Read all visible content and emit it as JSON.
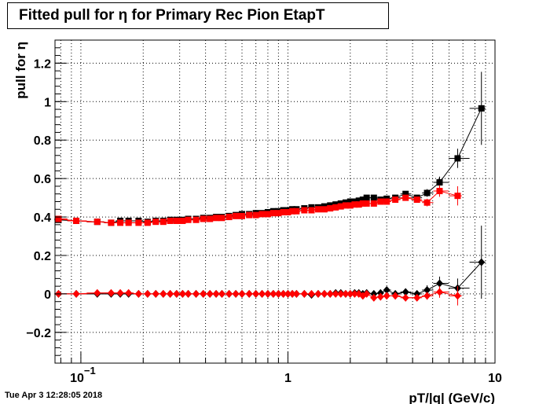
{
  "title": "Fitted pull for  η for Primary Rec Pion EtapT",
  "footer": "Tue Apr  3 12:28:05 2018",
  "chart_data": {
    "type": "scatter",
    "title": "Fitted pull for  η for Primary Rec Pion EtapT",
    "xlabel": "pT/|q| (GeV/c)",
    "ylabel": "pull for  η",
    "xscale": "log",
    "xlim": [
      0.075,
      10
    ],
    "ylim": [
      -0.36,
      1.32
    ],
    "grid": true,
    "x_ticks": [
      {
        "value": 0.1,
        "label": "10",
        "sup": "−1"
      },
      {
        "value": 1,
        "label": "1"
      },
      {
        "value": 10,
        "label": "10"
      }
    ],
    "y_ticks": [
      {
        "value": -0.2,
        "label": "−0.2"
      },
      {
        "value": 0,
        "label": "0"
      },
      {
        "value": 0.2,
        "label": "0.2"
      },
      {
        "value": 0.4,
        "label": "0.4"
      },
      {
        "value": 0.6,
        "label": "0.6"
      },
      {
        "value": 0.8,
        "label": "0.8"
      },
      {
        "value": 1,
        "label": "1"
      },
      {
        "value": 1.2,
        "label": "1.2"
      }
    ],
    "series": [
      {
        "color": "#000000",
        "marker": "square",
        "x": [
          0.078,
          0.095,
          0.12,
          0.14,
          0.155,
          0.17,
          0.19,
          0.21,
          0.23,
          0.25,
          0.27,
          0.29,
          0.31,
          0.33,
          0.36,
          0.39,
          0.42,
          0.45,
          0.48,
          0.52,
          0.56,
          0.6,
          0.65,
          0.7,
          0.75,
          0.8,
          0.85,
          0.9,
          0.95,
          1.0,
          1.05,
          1.1,
          1.2,
          1.3,
          1.4,
          1.5,
          1.6,
          1.7,
          1.8,
          1.9,
          2.0,
          2.1,
          2.2,
          2.3,
          2.4,
          2.6,
          2.8,
          3.0,
          3.3,
          3.7,
          4.2,
          4.7,
          5.4,
          6.6,
          8.6
        ],
        "y": [
          0.385,
          0.38,
          0.375,
          0.37,
          0.38,
          0.38,
          0.38,
          0.375,
          0.38,
          0.38,
          0.385,
          0.385,
          0.385,
          0.39,
          0.39,
          0.395,
          0.395,
          0.4,
          0.4,
          0.405,
          0.41,
          0.415,
          0.415,
          0.42,
          0.42,
          0.425,
          0.43,
          0.43,
          0.435,
          0.435,
          0.44,
          0.44,
          0.445,
          0.45,
          0.45,
          0.455,
          0.46,
          0.465,
          0.47,
          0.475,
          0.48,
          0.48,
          0.485,
          0.49,
          0.5,
          0.5,
          0.49,
          0.495,
          0.5,
          0.52,
          0.5,
          0.525,
          0.58,
          0.705,
          0.965
        ],
        "yerr": [
          0.005,
          0.005,
          0.005,
          0.005,
          0.005,
          0.005,
          0.005,
          0.005,
          0.005,
          0.005,
          0.005,
          0.005,
          0.005,
          0.005,
          0.005,
          0.005,
          0.005,
          0.005,
          0.005,
          0.005,
          0.005,
          0.005,
          0.005,
          0.005,
          0.005,
          0.005,
          0.005,
          0.005,
          0.005,
          0.005,
          0.005,
          0.005,
          0.005,
          0.005,
          0.005,
          0.005,
          0.005,
          0.005,
          0.005,
          0.006,
          0.006,
          0.006,
          0.006,
          0.007,
          0.008,
          0.008,
          0.008,
          0.01,
          0.01,
          0.012,
          0.015,
          0.02,
          0.03,
          0.05,
          0.19
        ]
      },
      {
        "color": "#ff0000",
        "marker": "square",
        "x": [
          0.078,
          0.095,
          0.12,
          0.14,
          0.155,
          0.17,
          0.19,
          0.21,
          0.23,
          0.25,
          0.27,
          0.29,
          0.31,
          0.33,
          0.36,
          0.39,
          0.42,
          0.45,
          0.48,
          0.52,
          0.56,
          0.6,
          0.65,
          0.7,
          0.75,
          0.8,
          0.85,
          0.9,
          0.95,
          1.0,
          1.05,
          1.1,
          1.2,
          1.3,
          1.4,
          1.5,
          1.6,
          1.7,
          1.8,
          1.9,
          2.0,
          2.1,
          2.2,
          2.3,
          2.4,
          2.6,
          2.8,
          3.0,
          3.3,
          3.7,
          4.2,
          4.7,
          5.4,
          6.6
        ],
        "y": [
          0.39,
          0.38,
          0.375,
          0.37,
          0.37,
          0.37,
          0.37,
          0.37,
          0.375,
          0.375,
          0.38,
          0.38,
          0.38,
          0.385,
          0.385,
          0.39,
          0.39,
          0.395,
          0.395,
          0.4,
          0.405,
          0.405,
          0.41,
          0.41,
          0.415,
          0.415,
          0.42,
          0.42,
          0.425,
          0.425,
          0.43,
          0.43,
          0.435,
          0.435,
          0.44,
          0.44,
          0.445,
          0.45,
          0.455,
          0.46,
          0.46,
          0.465,
          0.465,
          0.47,
          0.47,
          0.47,
          0.48,
          0.48,
          0.49,
          0.5,
          0.49,
          0.475,
          0.535,
          0.51
        ],
        "yerr": [
          0.005,
          0.005,
          0.005,
          0.005,
          0.005,
          0.005,
          0.005,
          0.005,
          0.005,
          0.005,
          0.005,
          0.005,
          0.005,
          0.005,
          0.005,
          0.005,
          0.005,
          0.005,
          0.005,
          0.005,
          0.005,
          0.005,
          0.005,
          0.005,
          0.005,
          0.005,
          0.005,
          0.005,
          0.005,
          0.005,
          0.005,
          0.005,
          0.005,
          0.005,
          0.005,
          0.005,
          0.005,
          0.005,
          0.005,
          0.006,
          0.006,
          0.006,
          0.006,
          0.007,
          0.008,
          0.008,
          0.008,
          0.01,
          0.01,
          0.012,
          0.015,
          0.02,
          0.03,
          0.05
        ]
      },
      {
        "color": "#000000",
        "marker": "diamond",
        "x": [
          0.078,
          0.095,
          0.12,
          0.14,
          0.155,
          0.17,
          0.19,
          0.21,
          0.23,
          0.25,
          0.27,
          0.29,
          0.31,
          0.33,
          0.36,
          0.39,
          0.42,
          0.45,
          0.48,
          0.52,
          0.56,
          0.6,
          0.65,
          0.7,
          0.75,
          0.8,
          0.85,
          0.9,
          0.95,
          1.0,
          1.05,
          1.1,
          1.2,
          1.3,
          1.4,
          1.5,
          1.6,
          1.7,
          1.8,
          1.9,
          2.0,
          2.1,
          2.2,
          2.3,
          2.4,
          2.6,
          2.8,
          3.0,
          3.3,
          3.7,
          4.2,
          4.7,
          5.4,
          6.6,
          8.6
        ],
        "y": [
          0.0,
          0.0,
          0.0,
          0.0,
          0.0,
          0.0,
          0.0,
          0.0,
          0.0,
          0.0,
          0.0,
          0.0,
          0.0,
          0.0,
          0.0,
          0.0,
          0.0,
          0.0,
          0.0,
          0.0,
          0.0,
          0.0,
          0.0,
          0.0,
          0.0,
          0.0,
          0.0,
          0.0,
          0.0,
          0.0,
          0.0,
          0.0,
          0.0,
          -0.005,
          0.0,
          0.0,
          0.0,
          0.005,
          0.005,
          0.0,
          0.0,
          0.005,
          0.005,
          0.0,
          0.005,
          0.0,
          0.005,
          0.02,
          0.0,
          0.01,
          0.0,
          0.02,
          0.055,
          0.03,
          0.165
        ],
        "yerr": [
          0.005,
          0.005,
          0.005,
          0.005,
          0.005,
          0.005,
          0.005,
          0.005,
          0.005,
          0.005,
          0.005,
          0.005,
          0.005,
          0.005,
          0.005,
          0.005,
          0.005,
          0.005,
          0.005,
          0.005,
          0.005,
          0.005,
          0.005,
          0.005,
          0.005,
          0.005,
          0.005,
          0.005,
          0.005,
          0.005,
          0.005,
          0.005,
          0.005,
          0.005,
          0.005,
          0.005,
          0.005,
          0.005,
          0.005,
          0.006,
          0.006,
          0.006,
          0.006,
          0.007,
          0.008,
          0.008,
          0.008,
          0.01,
          0.01,
          0.012,
          0.015,
          0.025,
          0.035,
          0.05,
          0.19
        ]
      },
      {
        "color": "#ff0000",
        "marker": "diamond",
        "x": [
          0.078,
          0.095,
          0.12,
          0.14,
          0.155,
          0.17,
          0.19,
          0.21,
          0.23,
          0.25,
          0.27,
          0.29,
          0.31,
          0.33,
          0.36,
          0.39,
          0.42,
          0.45,
          0.48,
          0.52,
          0.56,
          0.6,
          0.65,
          0.7,
          0.75,
          0.8,
          0.85,
          0.9,
          0.95,
          1.0,
          1.05,
          1.1,
          1.2,
          1.3,
          1.4,
          1.5,
          1.6,
          1.7,
          1.8,
          1.9,
          2.0,
          2.1,
          2.2,
          2.3,
          2.4,
          2.6,
          2.8,
          3.0,
          3.3,
          3.7,
          4.2,
          4.7,
          5.4,
          6.6
        ],
        "y": [
          0.0,
          0.0,
          0.005,
          0.005,
          0.005,
          0.005,
          0.0,
          0.0,
          0.0,
          0.0,
          0.0,
          0.0,
          0.0,
          0.0,
          0.0,
          0.0,
          0.0,
          0.0,
          0.0,
          0.0,
          0.0,
          0.0,
          0.0,
          0.0,
          0.0,
          0.0,
          0.0,
          0.0,
          0.0,
          0.0,
          0.0,
          0.0,
          0.0,
          0.0,
          0.0,
          0.0,
          0.0,
          0.0,
          0.0,
          0.0,
          0.0,
          0.0,
          0.0,
          -0.01,
          0.0,
          -0.02,
          -0.015,
          -0.01,
          -0.01,
          -0.02,
          -0.02,
          -0.01,
          0.01,
          -0.01
        ],
        "yerr": [
          0.005,
          0.005,
          0.005,
          0.005,
          0.005,
          0.005,
          0.005,
          0.005,
          0.005,
          0.005,
          0.005,
          0.005,
          0.005,
          0.005,
          0.005,
          0.005,
          0.005,
          0.005,
          0.005,
          0.005,
          0.005,
          0.005,
          0.005,
          0.005,
          0.005,
          0.005,
          0.005,
          0.005,
          0.005,
          0.005,
          0.005,
          0.005,
          0.005,
          0.005,
          0.005,
          0.005,
          0.005,
          0.005,
          0.005,
          0.006,
          0.006,
          0.006,
          0.006,
          0.007,
          0.008,
          0.008,
          0.008,
          0.01,
          0.01,
          0.012,
          0.015,
          0.02,
          0.03,
          0.05
        ]
      }
    ]
  }
}
